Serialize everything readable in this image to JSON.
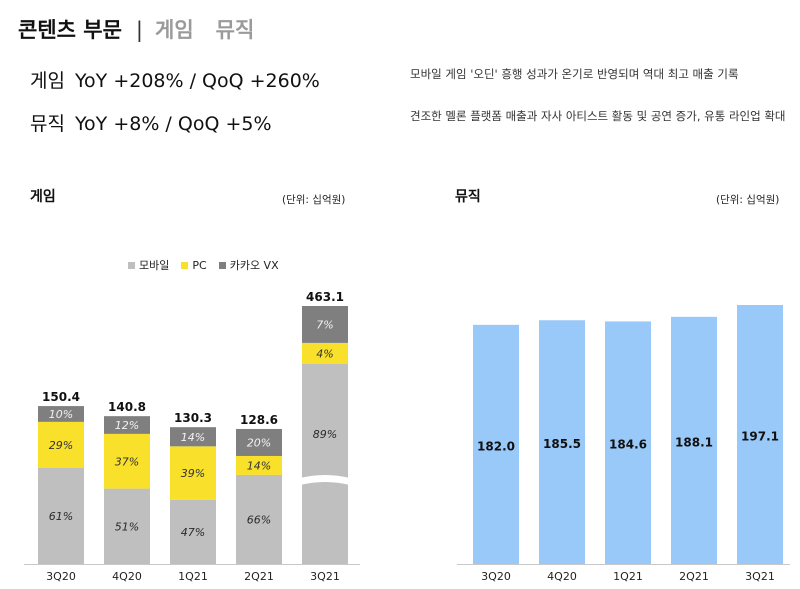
{
  "header": {
    "active": "콘텐츠 부문",
    "separator": "|",
    "tabs": [
      "게임",
      "뮤직"
    ]
  },
  "kpis": [
    {
      "category": "게임",
      "text": "YoY +208% / QoQ +260%"
    },
    {
      "category": "뮤직",
      "text": "YoY +8% / QoQ +5%"
    }
  ],
  "notes": [
    "모바일 게임 '오딘' 흥행 성과가 온기로 반영되며 역대 최고 매출 기록",
    "견조한 멜론 플랫폼 매출과 자사 아티스트 활동 및 공연 증가, 유통 라인업 확대"
  ],
  "colors": {
    "mobile": "#bfbfbf",
    "pc": "#f9e02b",
    "kakao_vx": "#7f7f7f",
    "music": "#99c9f8",
    "axis": "#c8c8c8"
  },
  "chart_data": [
    {
      "type": "bar",
      "stacked": true,
      "title": "게임",
      "unit": "(단위: 십억원)",
      "categories": [
        "3Q20",
        "4Q20",
        "1Q21",
        "2Q21",
        "3Q21"
      ],
      "totals": [
        150.4,
        140.8,
        130.3,
        128.6,
        463.1
      ],
      "totals_label": [
        "150.4",
        "140.8",
        "130.3",
        "128.6",
        "463.1"
      ],
      "series": [
        {
          "name": "모바일",
          "share": [
            61,
            51,
            47,
            66,
            89
          ],
          "labels": [
            "61%",
            "51%",
            "47%",
            "66%",
            "89%"
          ]
        },
        {
          "name": "PC",
          "share": [
            29,
            37,
            39,
            14,
            4
          ],
          "labels": [
            "29%",
            "37%",
            "39%",
            "14%",
            "4%"
          ]
        },
        {
          "name": "카카오 VX",
          "share": [
            10,
            12,
            14,
            20,
            7
          ],
          "labels": [
            "10%",
            "12%",
            "14%",
            "20%",
            "7%"
          ]
        }
      ],
      "axis_break_on": "3Q21"
    },
    {
      "type": "bar",
      "title": "뮤직",
      "unit": "(단위: 십억원)",
      "categories": [
        "3Q20",
        "4Q20",
        "1Q21",
        "2Q21",
        "3Q21"
      ],
      "values": [
        182.0,
        185.5,
        184.6,
        188.1,
        197.1
      ],
      "value_labels": [
        "182.0",
        "185.5",
        "184.6",
        "188.1",
        "197.1"
      ]
    }
  ]
}
